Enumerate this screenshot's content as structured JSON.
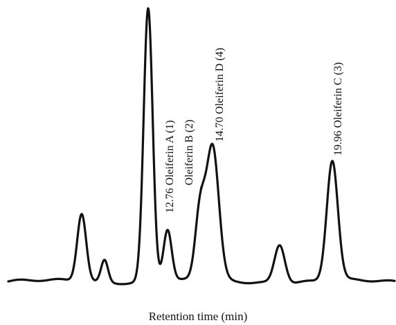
{
  "chart_data": {
    "type": "line",
    "title": "",
    "xlabel": "Retention time (min)",
    "ylabel": "",
    "x_axis_shown": false,
    "y_axis_shown": false,
    "grid": false,
    "legend": "none",
    "line_color": "#111111",
    "peaks": [
      {
        "label": "",
        "height": 0.25
      },
      {
        "label": "",
        "height": 0.08
      },
      {
        "label": "",
        "height": 1.0
      },
      {
        "label": "12.76 Oleiferin A (1)",
        "height": 0.19
      },
      {
        "label": "Oleiferin B (2)",
        "height": 0.25,
        "shoulder": true
      },
      {
        "label": "14.70 Oleiferin D (4)",
        "height": 0.49
      },
      {
        "label": "",
        "height": 0.14
      },
      {
        "label": "19.96 Oleiferin C (3)",
        "height": 0.44
      }
    ]
  }
}
